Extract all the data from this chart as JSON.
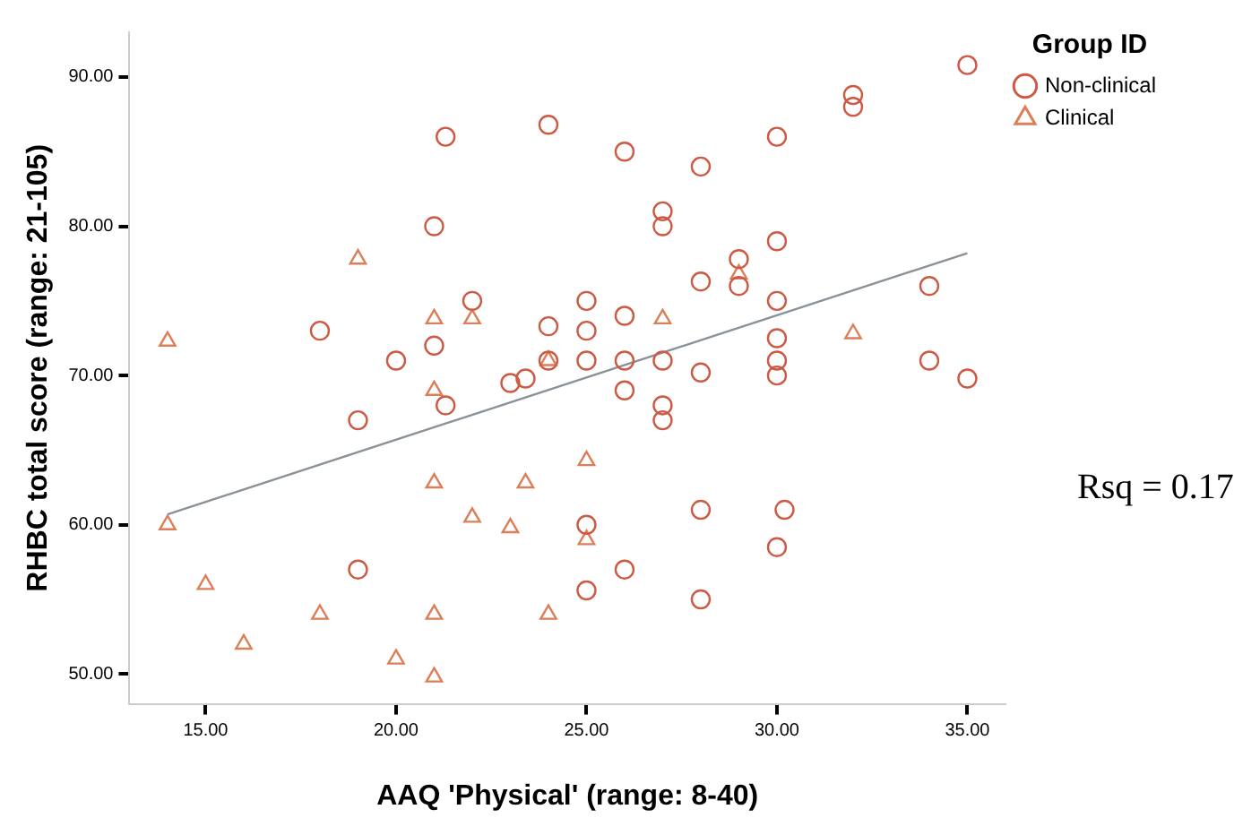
{
  "chart_data": {
    "type": "scatter",
    "xlabel": "AAQ 'Physical' (range: 8-40)",
    "ylabel": "RHBC total score (range: 21-105)",
    "legend_title": "Group ID",
    "legend": "top right",
    "grid": false,
    "xlim": [
      13,
      36
    ],
    "ylim": [
      48,
      93
    ],
    "xticks": [
      {
        "value": 15,
        "label": "15.00"
      },
      {
        "value": 20,
        "label": "20.00"
      },
      {
        "value": 25,
        "label": "25.00"
      },
      {
        "value": 30,
        "label": "30.00"
      },
      {
        "value": 35,
        "label": "35.00"
      }
    ],
    "yticks": [
      {
        "value": 50,
        "label": "50.00"
      },
      {
        "value": 60,
        "label": "60.00"
      },
      {
        "value": 70,
        "label": "70.00"
      },
      {
        "value": 80,
        "label": "80.00"
      },
      {
        "value": 90,
        "label": "90.00"
      }
    ],
    "annotations": [
      "Rsq = 0.17"
    ],
    "series": [
      {
        "name": "Non-clinical",
        "type": "scatter",
        "marker": "circle",
        "color": "#cc5a44",
        "x": [
          21.3,
          24,
          26,
          28,
          30,
          32,
          32,
          35,
          21,
          27,
          27,
          30,
          29,
          29,
          28,
          30,
          25,
          22,
          18,
          21,
          20,
          24,
          25,
          26,
          24,
          25,
          26,
          27,
          28,
          23,
          23.4,
          21.3,
          26,
          27,
          27,
          19,
          30,
          30,
          30,
          34,
          34,
          35,
          28,
          30.2,
          30,
          25,
          26,
          25,
          28,
          19
        ],
        "values": [
          86,
          86.8,
          85,
          84,
          86,
          88.8,
          88,
          90.8,
          80,
          81,
          80,
          79,
          77.8,
          76,
          76.3,
          75,
          75,
          75,
          73,
          72,
          71,
          73.3,
          73,
          74,
          71,
          71,
          71,
          71,
          70.2,
          69.5,
          69.8,
          68,
          69,
          68,
          67,
          67,
          72.5,
          71,
          70,
          76,
          71,
          69.8,
          61,
          61,
          58.5,
          60,
          57,
          55.6,
          55,
          57
        ]
      },
      {
        "name": "Clinical",
        "type": "scatter",
        "marker": "triangle",
        "color": "#dc7e58",
        "x": [
          14,
          19,
          21,
          22,
          27,
          29,
          32,
          24,
          21,
          25,
          21,
          23.4,
          22,
          23,
          25,
          14,
          15,
          18,
          21,
          24,
          16,
          20,
          21
        ],
        "values": [
          72.3,
          77.8,
          73.8,
          73.8,
          73.8,
          76.8,
          72.8,
          71,
          69,
          64.3,
          62.8,
          62.8,
          60.5,
          59.8,
          59,
          60,
          56,
          54,
          54,
          54,
          52,
          51,
          49.8
        ]
      },
      {
        "type": "line",
        "color": "#8a9298",
        "x": [
          14,
          35
        ],
        "values": [
          60.7,
          78.2
        ]
      }
    ]
  }
}
